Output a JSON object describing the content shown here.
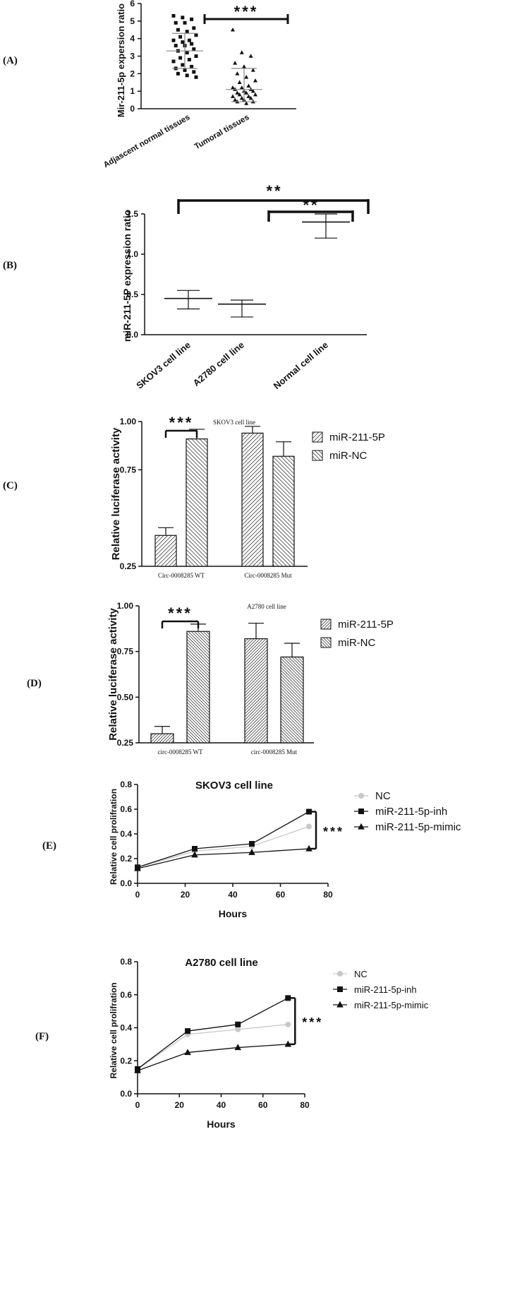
{
  "panels": {
    "A": "(A)",
    "B": "(B)",
    "C": "(C)",
    "D": "(D)",
    "E": "(E)",
    "F": "(F)"
  },
  "chart_data": [
    {
      "id": "A",
      "type": "scatter",
      "ylabel": "Mir-211-5p expersion ratio",
      "ylim": [
        0,
        6
      ],
      "yticks": [
        "0",
        "1",
        "2",
        "3",
        "4",
        "5",
        "6"
      ],
      "categories": [
        "Adjascent normal tissues",
        "Tumoral  tissues"
      ],
      "significance": "***",
      "series": [
        {
          "marker": "square",
          "values": [
            5.3,
            5.2,
            5.1,
            4.9,
            4.9,
            4.6,
            4.5,
            4.4,
            4.2,
            4.1,
            3.9,
            3.9,
            3.8,
            3.7,
            3.6,
            3.6,
            3.4,
            3.3,
            3.2,
            3.0,
            2.9,
            2.8,
            2.7,
            2.5,
            2.4,
            2.3,
            2.2,
            2.1,
            2.0,
            1.9,
            1.8
          ],
          "mean": 3.3,
          "sd_low": 2.3,
          "sd_high": 4.3
        },
        {
          "marker": "triangle",
          "values": [
            4.5,
            3.2,
            3.0,
            2.6,
            2.4,
            2.2,
            2.0,
            1.8,
            1.6,
            1.5,
            1.3,
            1.2,
            1.2,
            1.1,
            1.1,
            1.0,
            1.0,
            0.9,
            0.9,
            0.8,
            0.8,
            0.7,
            0.7,
            0.6,
            0.6,
            0.5,
            0.5,
            0.4,
            0.4,
            0.3
          ],
          "mean": 1.1,
          "sd_low": 0.4,
          "sd_high": 2.3
        }
      ]
    },
    {
      "id": "B",
      "type": "scatter",
      "ylabel": "miR-211-5P expression ratio",
      "ylim": [
        0,
        1.5
      ],
      "yticks": [
        "0.0",
        "0.5",
        "1.0",
        "1.5"
      ],
      "categories": [
        "SKOV3 cell line",
        "A2780 cell line",
        "Normal cell line"
      ],
      "means": [
        0.45,
        0.38,
        1.4
      ],
      "err_low": [
        0.32,
        0.22,
        1.2
      ],
      "err_high": [
        0.55,
        0.43,
        1.5
      ],
      "significance": [
        "**",
        "**"
      ]
    },
    {
      "id": "C",
      "type": "bar",
      "title": "SKOV3 cell line",
      "ylabel": "Relative luciferase activity",
      "ylim": [
        0.25,
        1.0
      ],
      "yticks": [
        "0.25",
        "0.75",
        "1.00"
      ],
      "categories": [
        "Circ-0008285 WT",
        "Circ-0008285 Mut"
      ],
      "series": [
        {
          "name": "miR-211-5P",
          "values": [
            0.41,
            0.94
          ],
          "errors": [
            0.04,
            0.035
          ]
        },
        {
          "name": "miR-NC",
          "values": [
            0.91,
            0.82
          ],
          "errors": [
            0.05,
            0.075
          ]
        }
      ],
      "significance": "***"
    },
    {
      "id": "D",
      "type": "bar",
      "title": "A2780 cell line",
      "ylabel": "Relative luciferase activity",
      "ylim": [
        0.25,
        1.0
      ],
      "yticks": [
        "0.25",
        "0.50",
        "0.75",
        "1.00"
      ],
      "categories": [
        "circ-0008285 WT",
        "circ-0008285 Mut"
      ],
      "series": [
        {
          "name": "miR-211-5P",
          "values": [
            0.3,
            0.82
          ],
          "errors": [
            0.04,
            0.085
          ]
        },
        {
          "name": "miR-NC",
          "values": [
            0.86,
            0.72
          ],
          "errors": [
            0.04,
            0.075
          ]
        }
      ],
      "significance": "***"
    },
    {
      "id": "E",
      "type": "line",
      "title": "SKOV3  cell line",
      "xlabel": "Hours",
      "ylabel": "Relative cell prolifration",
      "xlim": [
        0,
        80
      ],
      "ylim": [
        0,
        0.8
      ],
      "xticks": [
        "0",
        "20",
        "40",
        "60",
        "80"
      ],
      "yticks": [
        "0.0",
        "0.2",
        "0.4",
        "0.6",
        "0.8"
      ],
      "x": [
        0,
        24,
        48,
        72
      ],
      "series": [
        {
          "name": "NC",
          "marker": "circle",
          "color": "#c8c8c8",
          "values": [
            0.13,
            0.26,
            0.3,
            0.46
          ]
        },
        {
          "name": "miR-211-5p-inh",
          "marker": "square",
          "color": "#111111",
          "values": [
            0.13,
            0.28,
            0.32,
            0.58
          ]
        },
        {
          "name": "miR-211-5p-mimic",
          "marker": "triangle",
          "color": "#111111",
          "values": [
            0.12,
            0.23,
            0.25,
            0.28
          ]
        }
      ],
      "significance": "***"
    },
    {
      "id": "F",
      "type": "line",
      "title": "A2780  cell line",
      "xlabel": "Hours",
      "ylabel": "Relative cell prolifration",
      "xlim": [
        0,
        80
      ],
      "ylim": [
        0,
        0.8
      ],
      "xticks": [
        "0",
        "20",
        "40",
        "60",
        "80"
      ],
      "yticks": [
        "0.0",
        "0.2",
        "0.4",
        "0.6",
        "0.8"
      ],
      "x": [
        0,
        24,
        48,
        72
      ],
      "series": [
        {
          "name": "NC",
          "marker": "circle",
          "color": "#c8c8c8",
          "values": [
            0.15,
            0.36,
            0.39,
            0.42
          ]
        },
        {
          "name": "miR-211-5p-inh",
          "marker": "square",
          "color": "#111111",
          "values": [
            0.15,
            0.38,
            0.42,
            0.58
          ]
        },
        {
          "name": "miR-211-5p-mimic",
          "marker": "triangle",
          "color": "#111111",
          "values": [
            0.14,
            0.25,
            0.28,
            0.3
          ]
        }
      ],
      "significance": "***"
    }
  ]
}
